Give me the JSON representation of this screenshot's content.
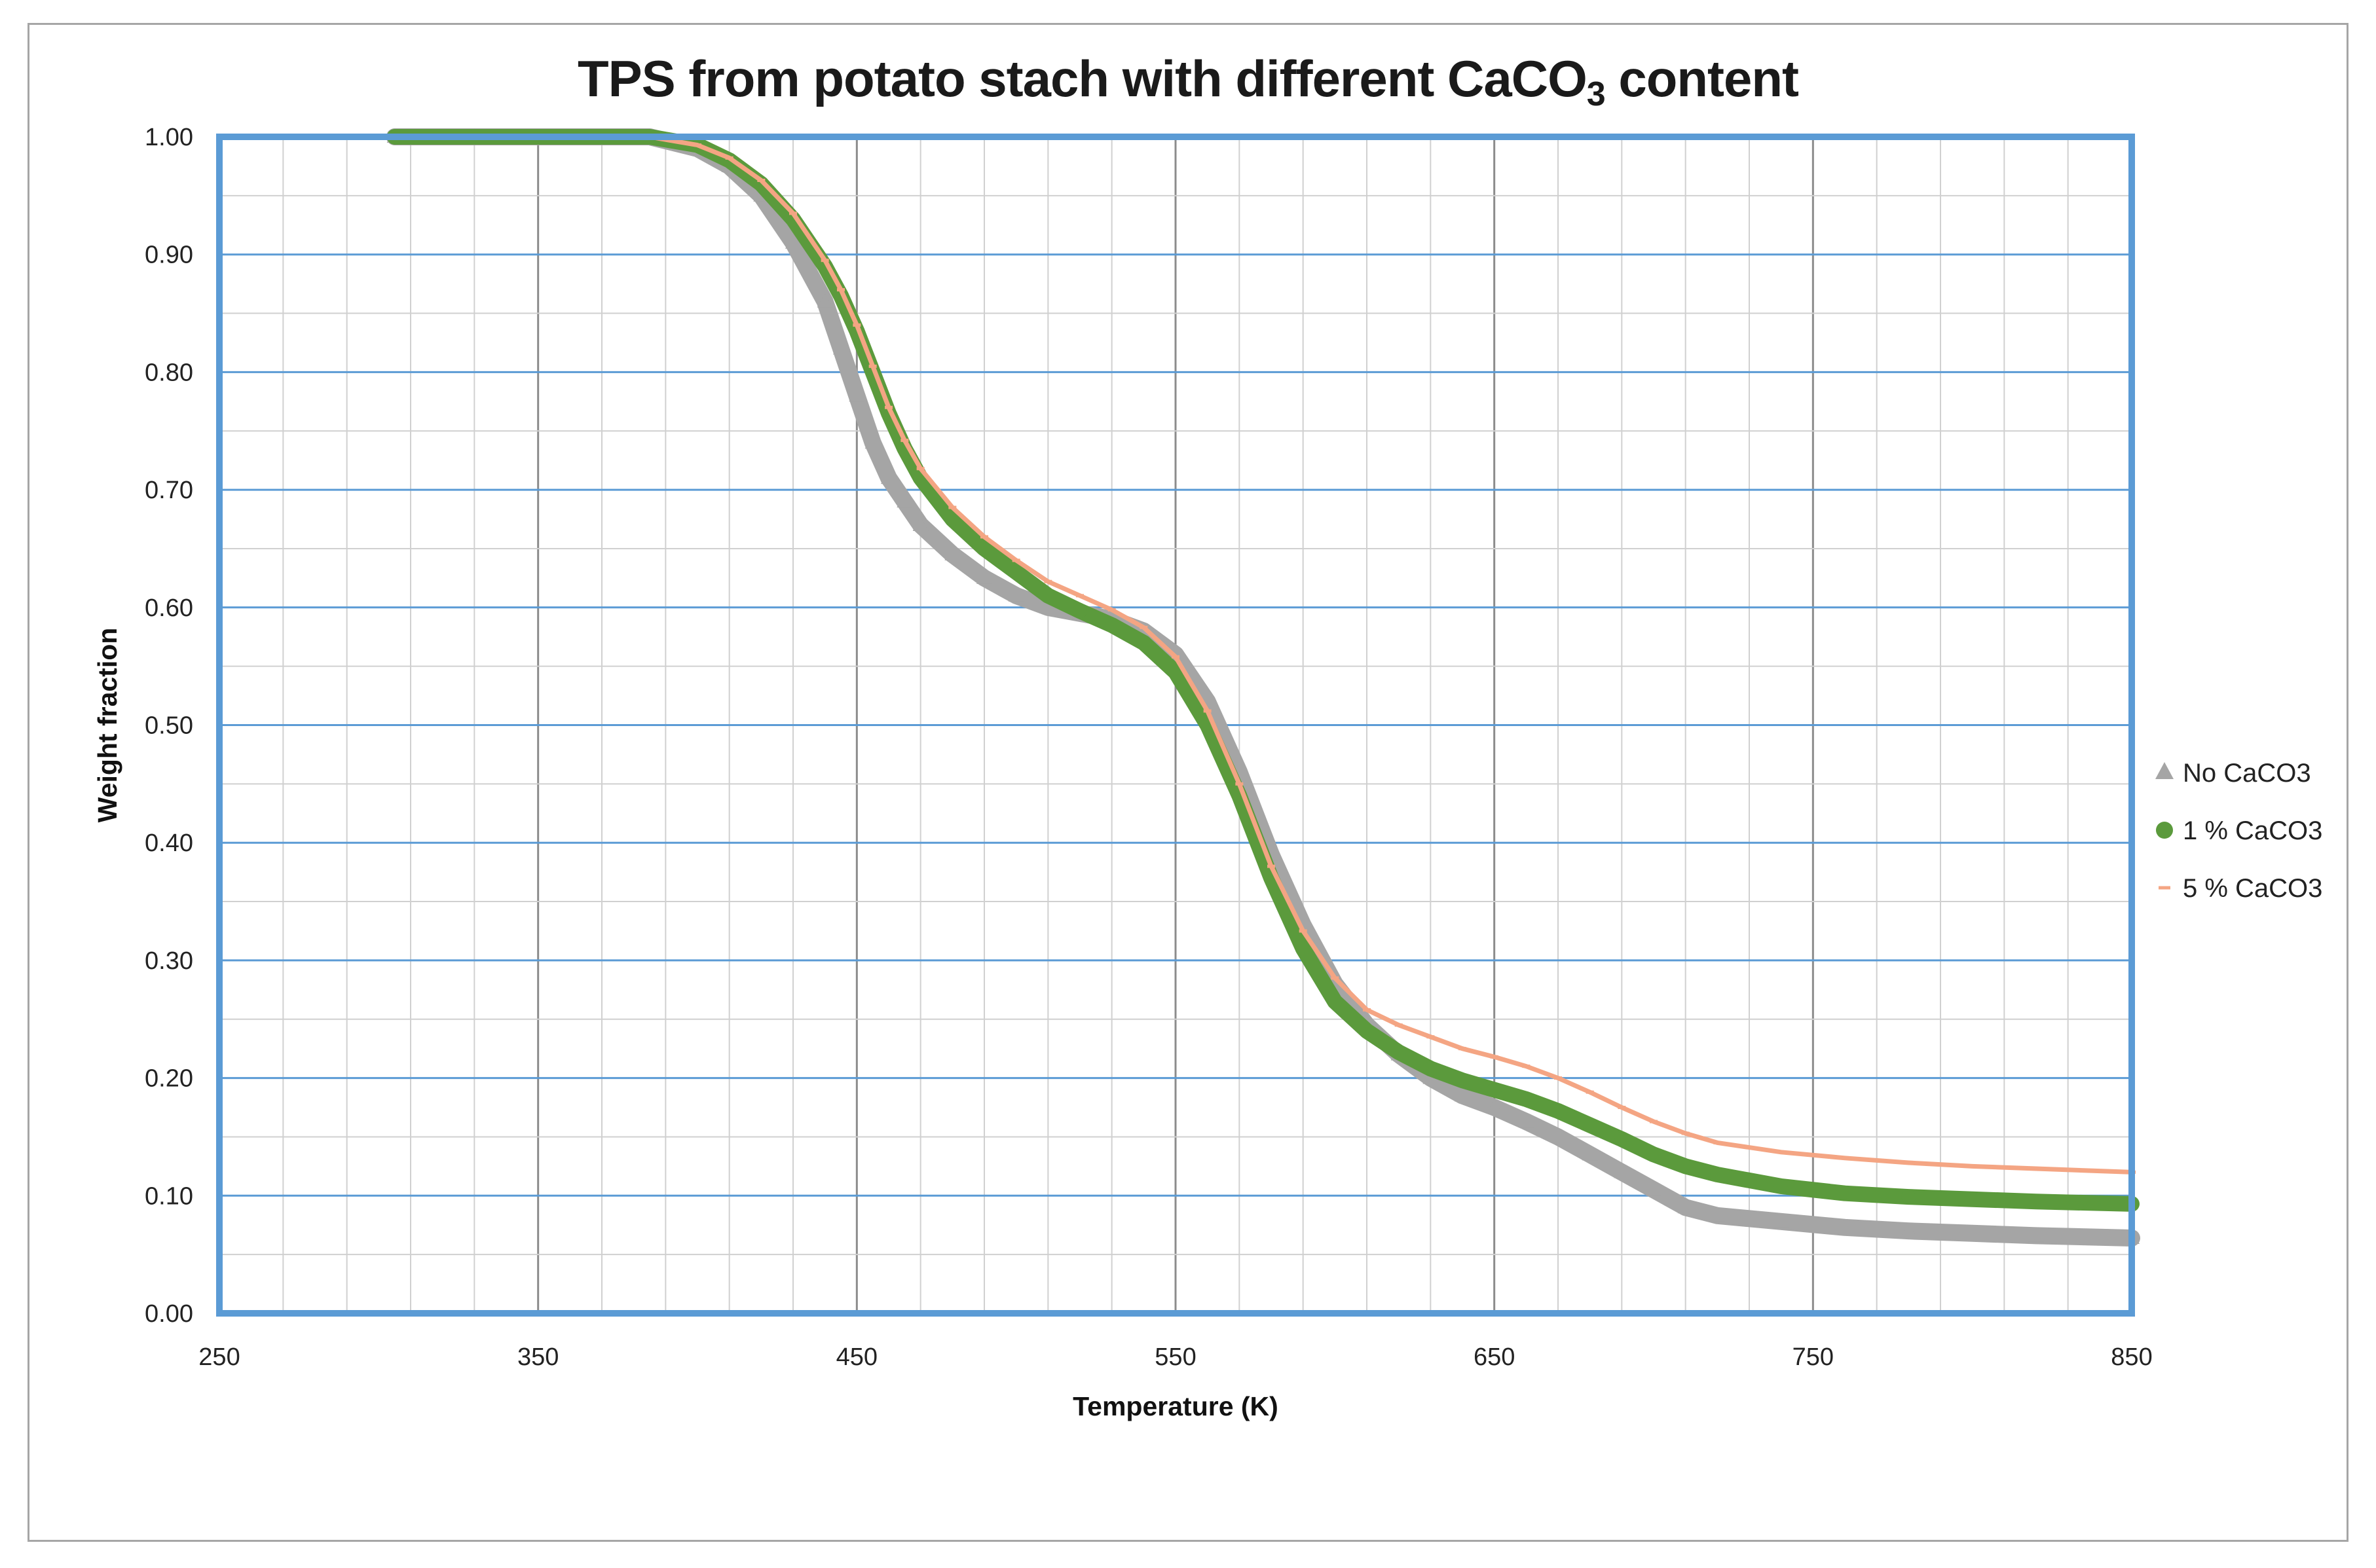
{
  "chart_data": {
    "type": "scatter",
    "title_main": "TPS from potato stach with different CaCO",
    "title_sub": "3",
    "title_end": " content",
    "xlabel": "Temperature (K)",
    "ylabel": "Weight fraction",
    "xlim": [
      250,
      850
    ],
    "ylim": [
      0,
      1
    ],
    "x_ticks": [
      "250",
      "350",
      "450",
      "550",
      "650",
      "750",
      "850"
    ],
    "y_ticks": [
      "0.00",
      "0.10",
      "0.20",
      "0.30",
      "0.40",
      "0.50",
      "0.60",
      "0.70",
      "0.80",
      "0.90",
      "1.00"
    ],
    "grid": true,
    "legend_position": "right",
    "series": [
      {
        "name": "No CaCO3",
        "marker": "triangle",
        "color": "#a5a5a5",
        "x": [
          305,
          330,
          360,
          385,
          400,
          410,
          420,
          430,
          440,
          445,
          450,
          455,
          460,
          465,
          470,
          480,
          490,
          500,
          510,
          520,
          530,
          540,
          550,
          560,
          570,
          580,
          590,
          600,
          610,
          620,
          630,
          640,
          650,
          660,
          670,
          680,
          690,
          700,
          710,
          720,
          740,
          760,
          780,
          800,
          820,
          850
        ],
        "y": [
          1.0,
          1.0,
          1.0,
          1.0,
          0.99,
          0.975,
          0.95,
          0.91,
          0.86,
          0.82,
          0.78,
          0.74,
          0.71,
          0.69,
          0.67,
          0.645,
          0.625,
          0.61,
          0.6,
          0.595,
          0.59,
          0.58,
          0.56,
          0.52,
          0.46,
          0.39,
          0.33,
          0.28,
          0.245,
          0.22,
          0.2,
          0.185,
          0.175,
          0.163,
          0.15,
          0.135,
          0.12,
          0.105,
          0.09,
          0.083,
          0.078,
          0.073,
          0.07,
          0.068,
          0.066,
          0.064
        ]
      },
      {
        "name": "1 % CaCO3",
        "marker": "circle",
        "color": "#5b9a3c",
        "x": [
          305,
          330,
          360,
          385,
          400,
          410,
          420,
          430,
          440,
          445,
          450,
          455,
          460,
          465,
          470,
          480,
          490,
          500,
          510,
          520,
          530,
          540,
          550,
          560,
          570,
          580,
          590,
          600,
          610,
          620,
          630,
          640,
          650,
          660,
          670,
          680,
          690,
          700,
          710,
          720,
          740,
          760,
          780,
          800,
          820,
          850
        ],
        "y": [
          1.0,
          1.0,
          1.0,
          1.0,
          0.993,
          0.98,
          0.96,
          0.93,
          0.89,
          0.865,
          0.835,
          0.8,
          0.765,
          0.735,
          0.71,
          0.675,
          0.65,
          0.63,
          0.61,
          0.597,
          0.585,
          0.57,
          0.545,
          0.5,
          0.44,
          0.37,
          0.31,
          0.265,
          0.24,
          0.222,
          0.208,
          0.198,
          0.19,
          0.182,
          0.172,
          0.16,
          0.148,
          0.135,
          0.125,
          0.118,
          0.108,
          0.102,
          0.099,
          0.097,
          0.095,
          0.093
        ]
      },
      {
        "name": "5 % CaCO3",
        "marker": "dash",
        "color": "#f4a583",
        "x": [
          305,
          330,
          360,
          385,
          400,
          410,
          420,
          430,
          440,
          445,
          450,
          455,
          460,
          465,
          470,
          480,
          490,
          500,
          510,
          520,
          530,
          540,
          550,
          560,
          570,
          580,
          590,
          600,
          610,
          620,
          630,
          640,
          650,
          660,
          670,
          680,
          690,
          700,
          710,
          720,
          740,
          760,
          780,
          800,
          820,
          850
        ],
        "y": [
          1.0,
          1.0,
          1.0,
          1.0,
          0.993,
          0.982,
          0.963,
          0.935,
          0.895,
          0.87,
          0.84,
          0.805,
          0.77,
          0.742,
          0.718,
          0.685,
          0.66,
          0.64,
          0.622,
          0.61,
          0.598,
          0.583,
          0.558,
          0.512,
          0.45,
          0.38,
          0.325,
          0.285,
          0.258,
          0.245,
          0.235,
          0.225,
          0.218,
          0.21,
          0.2,
          0.188,
          0.175,
          0.163,
          0.153,
          0.145,
          0.137,
          0.132,
          0.128,
          0.125,
          0.123,
          0.12
        ]
      }
    ]
  }
}
